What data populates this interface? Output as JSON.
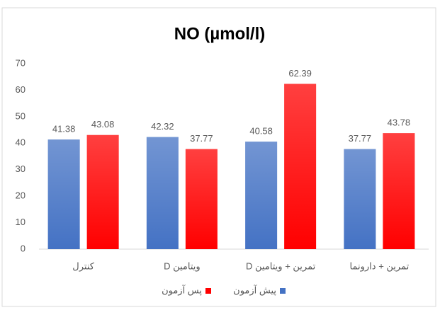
{
  "chart_data": {
    "type": "bar",
    "title": "NO (µmol/l)",
    "categories": [
      "کنترل",
      "ویتامین D",
      "تمرین + ویتامین D",
      "تمرین + دارونما"
    ],
    "series": [
      {
        "name": "پیش آزمون",
        "color": "#4472c4",
        "values": [
          41.38,
          42.32,
          40.58,
          37.77
        ]
      },
      {
        "name": "پس آزمون",
        "color": "#ff0000",
        "values": [
          43.08,
          37.77,
          62.39,
          43.78
        ]
      }
    ],
    "ylim": [
      0,
      70
    ],
    "yticks": [
      0,
      10,
      20,
      30,
      40,
      50,
      60,
      70
    ],
    "grid": false,
    "legend": "bottom"
  }
}
